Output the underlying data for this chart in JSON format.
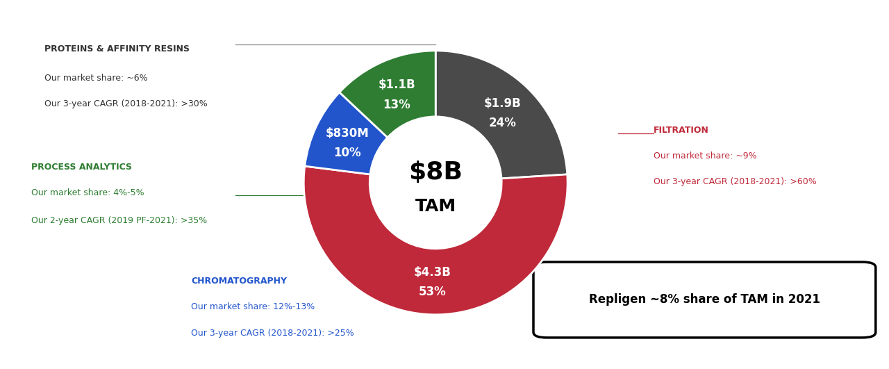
{
  "segments": [
    {
      "label": "PROTEINS & AFFINITY RESINS",
      "value": 24,
      "amount": "$1.9B",
      "color": "#4A4A4A"
    },
    {
      "label": "FILTRATION",
      "value": 53,
      "amount": "$4.3B",
      "color": "#C0293A"
    },
    {
      "label": "CHROMATOGRAPHY",
      "value": 10,
      "amount": "$830M",
      "color": "#2255CC"
    },
    {
      "label": "PROCESS ANALYTICS",
      "value": 13,
      "amount": "$1.1B",
      "color": "#2E7D32"
    }
  ],
  "center_text_line1": "$8B",
  "center_text_line2": "TAM",
  "background_color": "#FFFFFF",
  "box_text": "Repligen ~8% share of TAM in 2021"
}
